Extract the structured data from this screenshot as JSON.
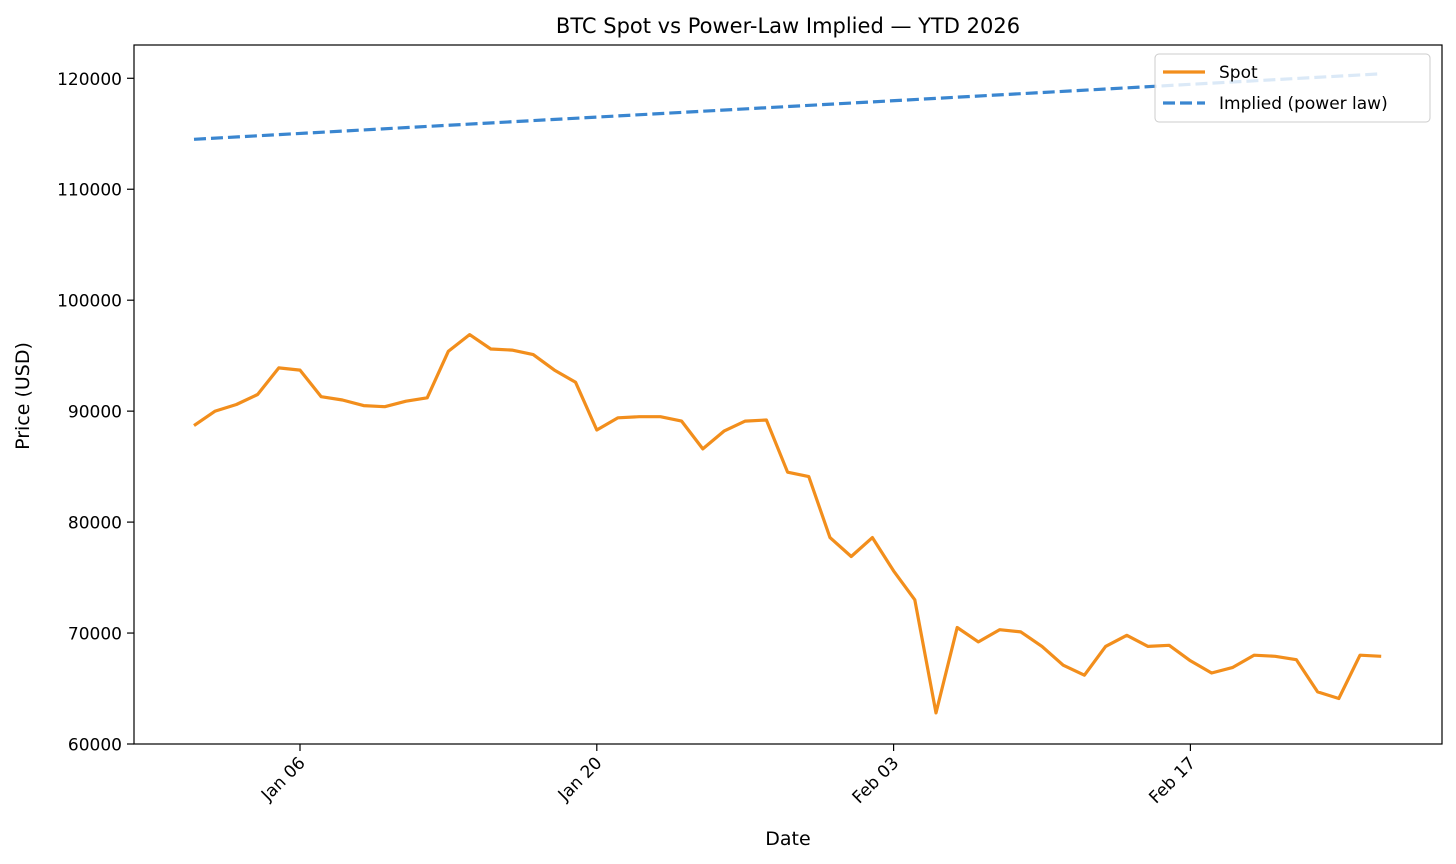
{
  "chart_data": {
    "type": "line",
    "title": "BTC Spot vs Power-Law Implied — YTD 2026",
    "xlabel": "Date",
    "ylabel": "Price (USD)",
    "x_range": [
      "2026-01-01",
      "2026-02-25"
    ],
    "ylim": [
      60000,
      123000
    ],
    "grid": false,
    "legend_position": "top-right",
    "x_ticks": [
      {
        "date": "2026-01-06",
        "label": "Jan 06"
      },
      {
        "date": "2026-01-20",
        "label": "Jan 20"
      },
      {
        "date": "2026-02-03",
        "label": "Feb 03"
      },
      {
        "date": "2026-02-17",
        "label": "Feb 17"
      }
    ],
    "y_ticks": [
      60000,
      70000,
      80000,
      90000,
      100000,
      110000,
      120000
    ],
    "series": [
      {
        "name": "Spot",
        "color": "#f28e1c",
        "style": "solid",
        "x": [
          "2026-01-01",
          "2026-01-02",
          "2026-01-03",
          "2026-01-04",
          "2026-01-05",
          "2026-01-06",
          "2026-01-07",
          "2026-01-08",
          "2026-01-09",
          "2026-01-10",
          "2026-01-11",
          "2026-01-12",
          "2026-01-13",
          "2026-01-14",
          "2026-01-15",
          "2026-01-16",
          "2026-01-17",
          "2026-01-18",
          "2026-01-19",
          "2026-01-20",
          "2026-01-21",
          "2026-01-22",
          "2026-01-23",
          "2026-01-24",
          "2026-01-25",
          "2026-01-26",
          "2026-01-27",
          "2026-01-28",
          "2026-01-29",
          "2026-01-30",
          "2026-01-31",
          "2026-02-01",
          "2026-02-02",
          "2026-02-03",
          "2026-02-04",
          "2026-02-05",
          "2026-02-06",
          "2026-02-07",
          "2026-02-08",
          "2026-02-09",
          "2026-02-10",
          "2026-02-11",
          "2026-02-12",
          "2026-02-13",
          "2026-02-14",
          "2026-02-15",
          "2026-02-16",
          "2026-02-17",
          "2026-02-18",
          "2026-02-19",
          "2026-02-20",
          "2026-02-21",
          "2026-02-22",
          "2026-02-23",
          "2026-02-24",
          "2026-02-25",
          "2026-02-26"
        ],
        "values": [
          88700,
          90000,
          90600,
          91500,
          93900,
          93700,
          91300,
          91000,
          90500,
          90400,
          90900,
          91200,
          95400,
          96900,
          95600,
          95500,
          95100,
          93700,
          92600,
          88300,
          89400,
          89500,
          89500,
          89100,
          86600,
          88200,
          89100,
          89200,
          84500,
          84100,
          78600,
          76900,
          78600,
          75600,
          73000,
          62800,
          70500,
          69200,
          70300,
          70100,
          68800,
          67100,
          66200,
          68800,
          69800,
          68800,
          68900,
          67500,
          66400,
          66900,
          68000,
          67900,
          67600,
          64700,
          64100,
          68000,
          67900
        ]
      },
      {
        "name": "Implied (power law)",
        "color": "#3a86d0",
        "style": "dashed",
        "x": [
          "2026-01-01",
          "2026-02-26"
        ],
        "values": [
          114500,
          120400
        ]
      }
    ]
  }
}
